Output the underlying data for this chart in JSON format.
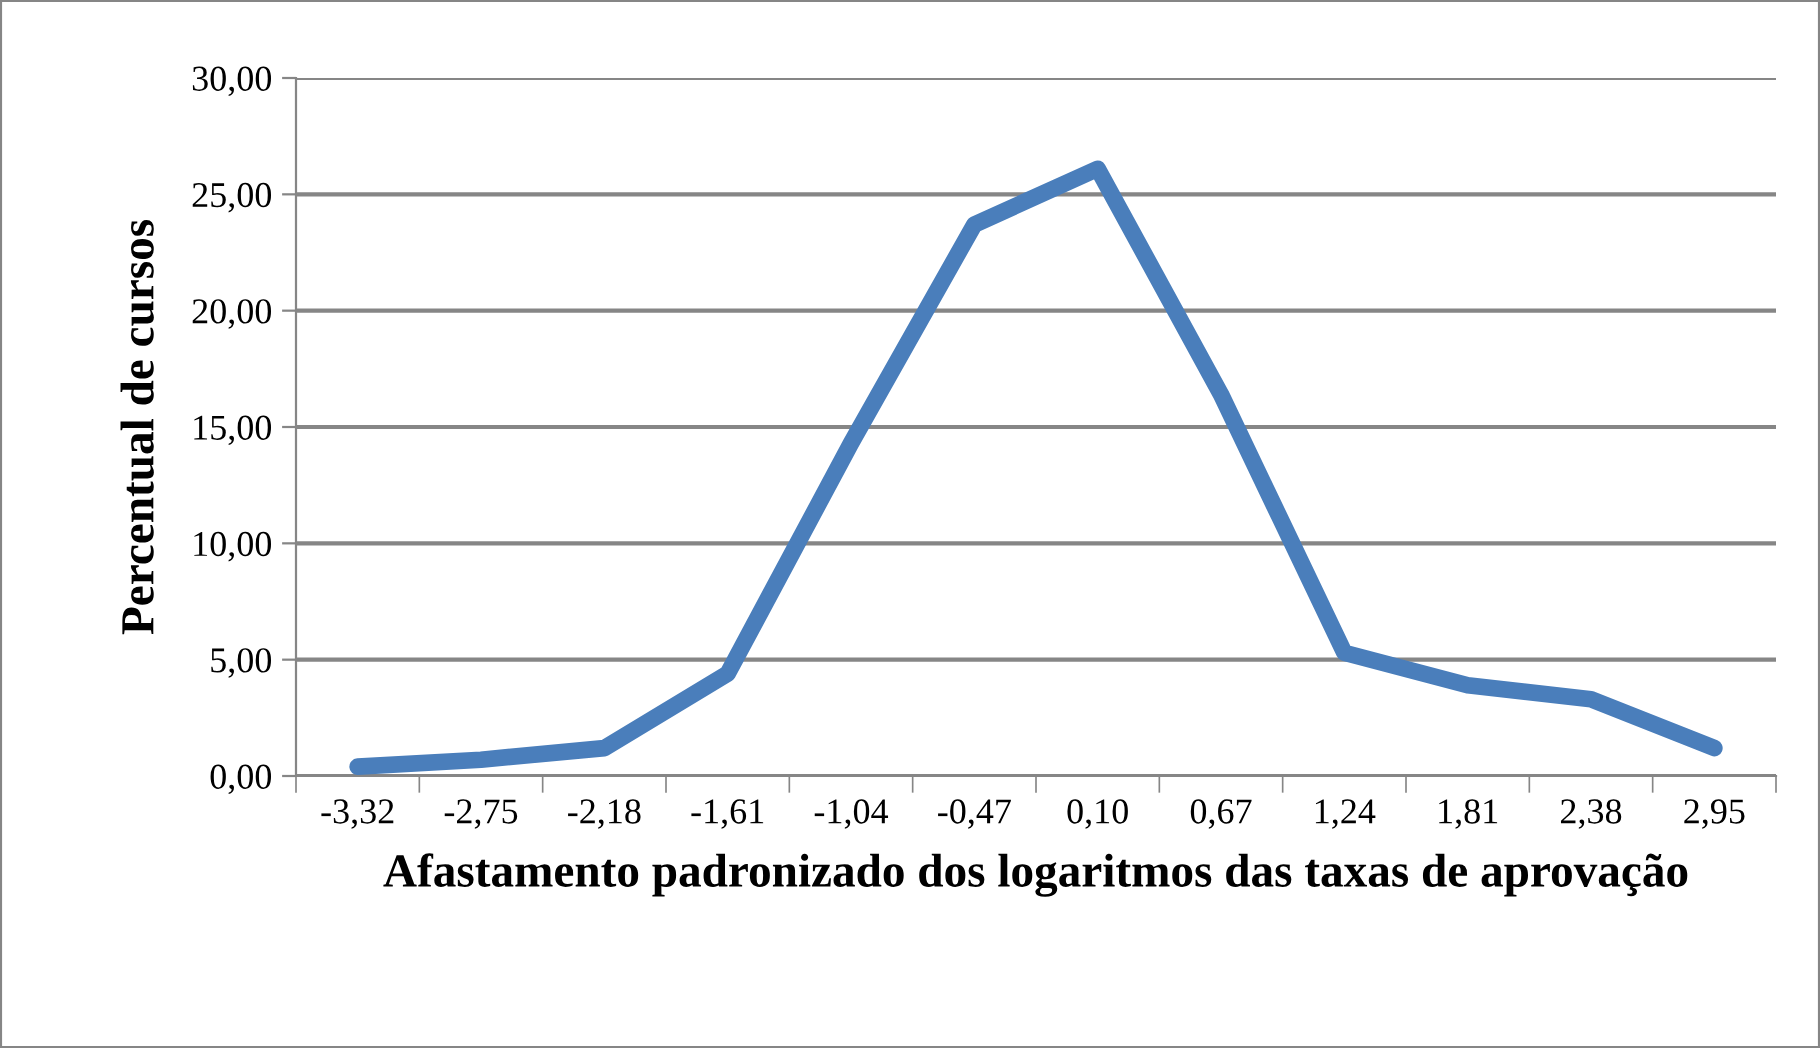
{
  "chart_data": {
    "type": "line",
    "xlabel": "Afastamento padronizado dos logaritmos das taxas de aprovação",
    "ylabel": "Percentual de cursos",
    "categories": [
      "-3,32",
      "-2,75",
      "-2,18",
      "-1,61",
      "-1,04",
      "-0,47",
      "0,10",
      "0,67",
      "1,24",
      "1,81",
      "2,38",
      "2,95"
    ],
    "series": [
      {
        "color": "#4a7ebb",
        "values": [
          0.4,
          0.7,
          1.2,
          4.4,
          14.3,
          23.7,
          26.1,
          16.4,
          5.3,
          3.9,
          3.3,
          1.2
        ]
      }
    ],
    "ylim": [
      0,
      30
    ],
    "yticks": [
      {
        "value": 0,
        "label": "0,00"
      },
      {
        "value": 5,
        "label": "5,00"
      },
      {
        "value": 10,
        "label": "10,00"
      },
      {
        "value": 15,
        "label": "15,00"
      },
      {
        "value": 20,
        "label": "20,00"
      },
      {
        "value": 25,
        "label": "25,00"
      },
      {
        "value": 30,
        "label": "30,00"
      }
    ],
    "grid": "y",
    "marker": "none",
    "line_style": "solid",
    "legend": false
  }
}
